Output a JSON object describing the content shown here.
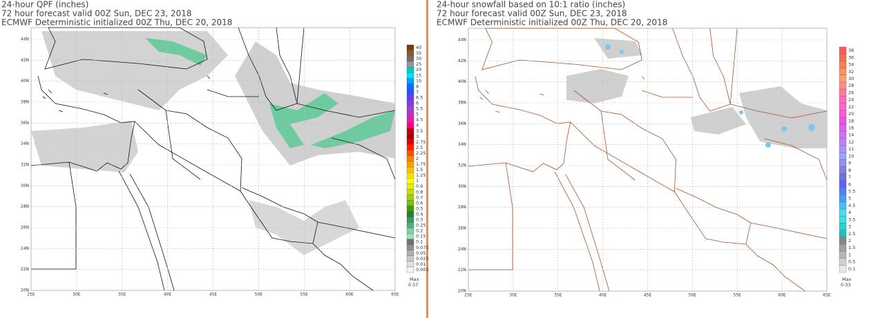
{
  "panels": [
    {
      "titles": [
        "24-hour QPF (inches)",
        "72 hour forecast valid 00Z Sun, DEC 23, 2018",
        "ECMWF Deterministic initialized 00Z Thu, DEC 20, 2018"
      ],
      "lat_labels": [
        "44N",
        "42N",
        "40N",
        "38N",
        "36N",
        "34N",
        "32N",
        "30N",
        "28N",
        "26N",
        "24N",
        "22N",
        "20N"
      ],
      "lon_labels": [
        "25E",
        "30E",
        "35E",
        "40E",
        "45E",
        "50E",
        "55E",
        "60E",
        "65E"
      ],
      "colorbar": {
        "levels": [
          40,
          35,
          30,
          25,
          20,
          15,
          10,
          8,
          7,
          6.5,
          6,
          5.5,
          5,
          4.5,
          4,
          3.5,
          3,
          2.75,
          2.5,
          2.25,
          2,
          1.75,
          1.5,
          1.25,
          1,
          0.9,
          0.8,
          0.7,
          0.6,
          0.5,
          0.4,
          0.3,
          0.25,
          0.2,
          0.15,
          0.1,
          0.075,
          0.05,
          0.025,
          0.01,
          0.005
        ],
        "colors": [
          "#7a3b10",
          "#8b5a2b",
          "#6e6e6e",
          "#969696",
          "#00c8c8",
          "#00e0ff",
          "#00a0ff",
          "#0070ff",
          "#3050ff",
          "#6040ff",
          "#8040e0",
          "#a040d0",
          "#c030c0",
          "#e020b0",
          "#ff0080",
          "#c00000",
          "#a00000",
          "#e00000",
          "#ff2000",
          "#ff5000",
          "#ff8000",
          "#ffa000",
          "#ffc000",
          "#ffe000",
          "#ffff00",
          "#e0f000",
          "#c0e000",
          "#a0d000",
          "#80c000",
          "#40a000",
          "#208040",
          "#30a060",
          "#50b080",
          "#80d0a0",
          "#a0e0c0",
          "#707070",
          "#909090",
          "#b0b0b0",
          "#c8c8c8",
          "#e0e0e0",
          "#f4f4f4"
        ]
      },
      "max_label": "Max",
      "max_value": 0.57
    },
    {
      "titles": [
        "24-hour snowfall based on 10:1 ratio (inches)",
        "72 hour forecast valid 00Z Sun, DEC 23, 2018",
        "ECMWF Deterministic initialized 00Z Thu, DEC 20, 2018"
      ],
      "lat_labels": [
        "44N",
        "42N",
        "40N",
        "38N",
        "36N",
        "34N",
        "32N",
        "30N",
        "28N",
        "26N",
        "24N",
        "22N",
        "20N"
      ],
      "lon_labels": [
        "25E",
        "30E",
        "35E",
        "40E",
        "45E",
        "50E",
        "55E",
        "60E",
        "65E"
      ],
      "colorbar": {
        "levels": [
          38,
          36,
          34,
          32,
          30,
          28,
          26,
          24,
          22,
          20,
          18,
          16,
          14,
          12,
          11,
          10,
          9,
          8,
          7,
          6,
          5.5,
          5,
          4.5,
          4,
          3.5,
          3,
          2.5,
          2,
          1.5,
          1,
          0.5,
          0.1
        ],
        "colors": [
          "#ff5a5a",
          "#ff6e50",
          "#ff8050",
          "#ff9060",
          "#ffa070",
          "#ff8c8c",
          "#ff7aa0",
          "#ff6eb4",
          "#ff64c8",
          "#ff5ad2",
          "#f050e0",
          "#e060f0",
          "#d070ff",
          "#c080ff",
          "#b090ff",
          "#a0a0ff",
          "#9090f0",
          "#8080e0",
          "#7070d0",
          "#6060ff",
          "#5080ff",
          "#40a0ff",
          "#40c0ff",
          "#50d8f0",
          "#40e0e0",
          "#30d0d0",
          "#20c0c0",
          "#888888",
          "#a0a0a0",
          "#b8b8b8",
          "#d0d0d0",
          "#e8e8e8"
        ]
      },
      "max_label": "Max",
      "max_value": 0.33
    }
  ]
}
